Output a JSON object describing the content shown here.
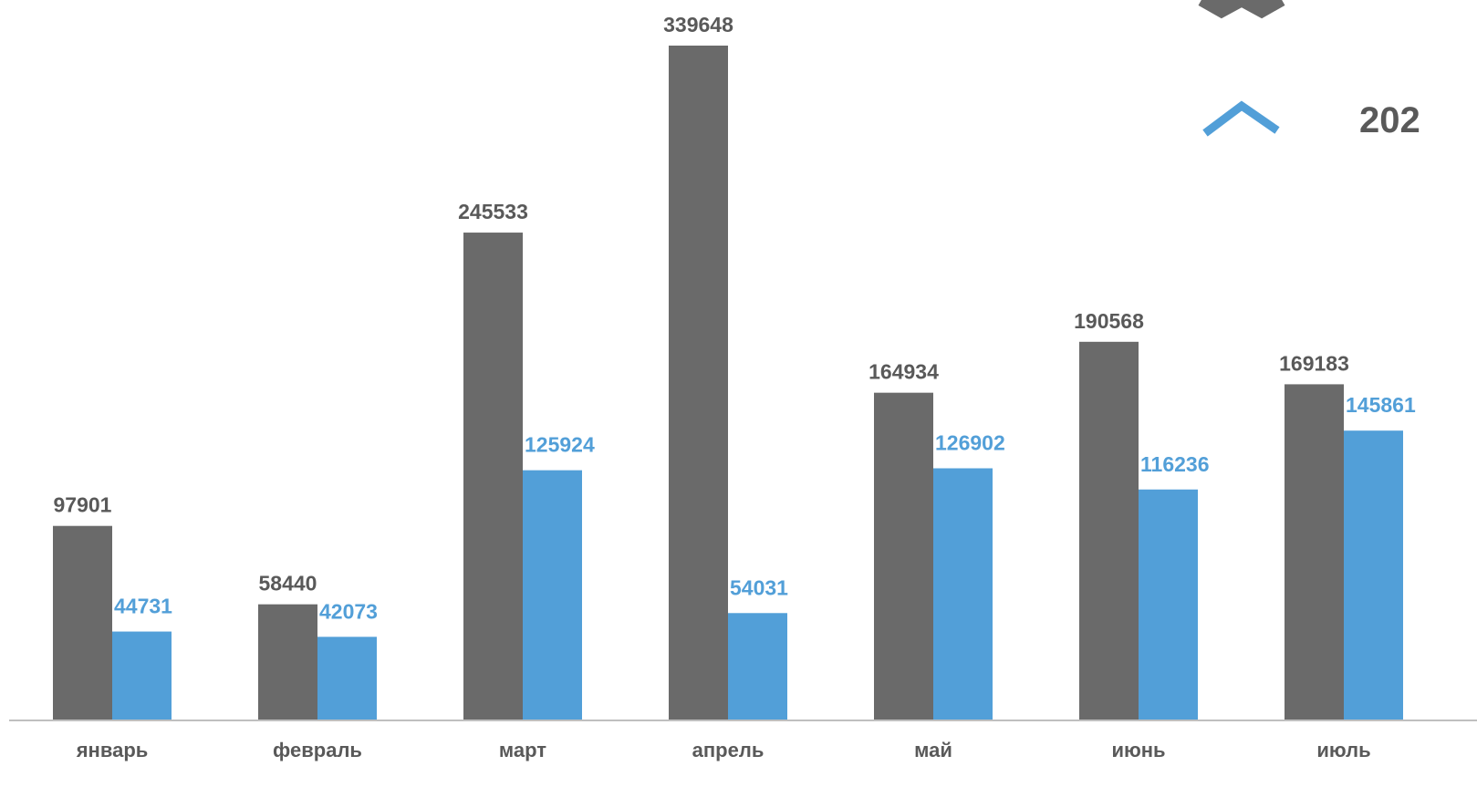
{
  "chart_data": {
    "type": "bar",
    "categories": [
      "январь",
      "февраль",
      "март",
      "апрель",
      "май",
      "июнь",
      "июль"
    ],
    "series": [
      {
        "name": "",
        "color": "#6a6a6a",
        "label_color": "#595959",
        "legend_icon": "chevron-down-icon",
        "values": [
          97901,
          58440,
          245533,
          339648,
          164934,
          190568,
          169183
        ]
      },
      {
        "name": "202",
        "color": "#529fd8",
        "label_color": "#529fd8",
        "legend_icon": "chevron-up-icon",
        "values": [
          44731,
          42073,
          125924,
          54031,
          126902,
          116236,
          145861
        ]
      }
    ],
    "ylim": [
      0,
      339648
    ],
    "grid": false,
    "legend_position": "top-right",
    "title": "",
    "xlabel": "",
    "ylabel": ""
  }
}
